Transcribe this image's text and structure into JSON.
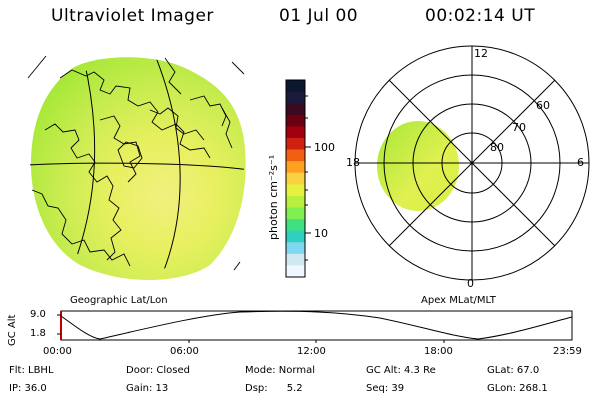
{
  "header": {
    "instrument": "Ultraviolet Imager",
    "date": "01 Jul 00",
    "time": "00:02:14 UT"
  },
  "colorbar": {
    "unit_label": "photon cm⁻²s⁻¹",
    "ticks": [
      "100",
      "10"
    ],
    "colors": [
      "#0d1830",
      "#1a1a3a",
      "#3a0a20",
      "#6a0010",
      "#a00010",
      "#d02010",
      "#f06010",
      "#ffa020",
      "#f8d040",
      "#e8f040",
      "#b8f040",
      "#80f050",
      "#40e080",
      "#30d0c0",
      "#80d8f0",
      "#d0e8f0",
      "#f0f8ff"
    ]
  },
  "geo_map": {
    "label": "Geographic Lat/Lon",
    "image_colors": [
      "#a8e838",
      "#d8f040",
      "#e8f060",
      "#f0f080",
      "#78e060",
      "#c8ec50"
    ]
  },
  "polar_plot": {
    "label": "Apex MLat/MLT",
    "mlt_labels": {
      "top": "12",
      "left": "18",
      "right": "6",
      "bottom": "0"
    },
    "lat_labels": [
      "60",
      "70",
      "80"
    ]
  },
  "altitude_plot": {
    "ylabel": "GC Alt",
    "yticks": [
      "9.0",
      "1.8"
    ],
    "xticks": [
      "00:00",
      "06:00",
      "12:00",
      "18:00",
      "23:59"
    ]
  },
  "status": {
    "row1": {
      "flt": "Flt: LBHL",
      "door": "Door: Closed",
      "mode": "Mode: Normal",
      "gc_alt": "GC Alt: 4.3 Re",
      "glat": "GLat:  67.0"
    },
    "row2": {
      "ip": "IP: 36.0",
      "gain": "Gain: 13",
      "dsp": "Dsp:      5.2",
      "seq": "Seq: 39",
      "glon": "GLon: 268.1"
    }
  }
}
